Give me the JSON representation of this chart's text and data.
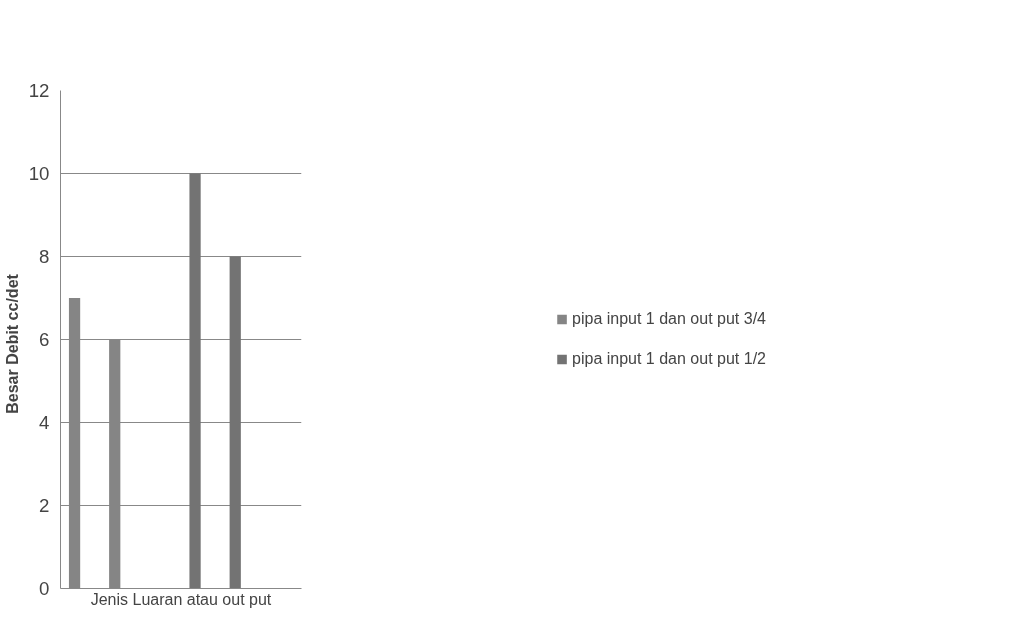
{
  "chart_data": {
    "type": "bar",
    "xlabel": "Jenis Luaran atau out put",
    "ylabel": "Besar Debit   cc/det",
    "categories": [
      null,
      null,
      null,
      null,
      null,
      null
    ],
    "series": [
      {
        "name": "pipa input 1 dan out put 3/4",
        "color": "#858585",
        "values": [
          7,
          6,
          null,
          null,
          null,
          null
        ]
      },
      {
        "name": "pipa input 1 dan out put 1/2",
        "color": "#737373",
        "values": [
          null,
          null,
          null,
          10,
          8,
          null
        ]
      }
    ],
    "ylim": [
      0,
      12
    ],
    "yticks": [
      0,
      2,
      4,
      6,
      8,
      10,
      12
    ],
    "grid": "y",
    "legend": "right",
    "tick_labels": "y"
  }
}
